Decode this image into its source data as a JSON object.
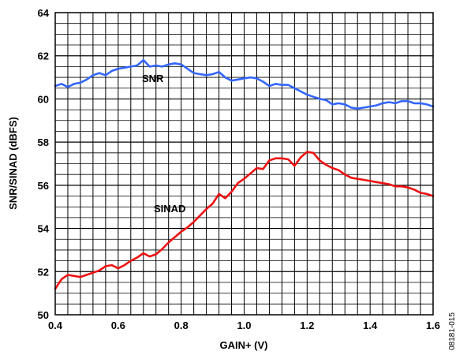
{
  "chart_data": {
    "type": "line",
    "xlabel": "GAIN+ (V)",
    "ylabel": "SNR/SINAD (dBFS)",
    "xlim": [
      0.4,
      1.6
    ],
    "ylim": [
      50,
      64
    ],
    "x_ticks": [
      0.4,
      0.6,
      0.8,
      1.0,
      1.2,
      1.4,
      1.6
    ],
    "x_tick_labels": [
      "0.4",
      "0.6",
      "0.8",
      "1.0",
      "1.2",
      "1.4",
      "1.6"
    ],
    "y_ticks": [
      50,
      52,
      54,
      56,
      58,
      60,
      62,
      64
    ],
    "y_tick_labels": [
      "50",
      "52",
      "54",
      "56",
      "58",
      "60",
      "62",
      "64"
    ],
    "grid": true,
    "figure_id": "08181-015",
    "series": [
      {
        "name": "SNR",
        "color": "#3366ff",
        "x": [
          0.4,
          0.42,
          0.44,
          0.46,
          0.48,
          0.5,
          0.52,
          0.54,
          0.56,
          0.58,
          0.6,
          0.62,
          0.64,
          0.66,
          0.68,
          0.7,
          0.72,
          0.74,
          0.76,
          0.78,
          0.8,
          0.82,
          0.84,
          0.86,
          0.88,
          0.9,
          0.92,
          0.94,
          0.96,
          0.98,
          1.0,
          1.02,
          1.04,
          1.06,
          1.08,
          1.1,
          1.12,
          1.14,
          1.16,
          1.18,
          1.2,
          1.22,
          1.24,
          1.26,
          1.28,
          1.3,
          1.32,
          1.34,
          1.36,
          1.38,
          1.4,
          1.42,
          1.44,
          1.46,
          1.48,
          1.5,
          1.52,
          1.54,
          1.56,
          1.58,
          1.6
        ],
        "values": [
          60.6,
          60.7,
          60.55,
          60.7,
          60.75,
          60.9,
          61.1,
          61.2,
          61.1,
          61.3,
          61.4,
          61.45,
          61.5,
          61.55,
          61.8,
          61.5,
          61.55,
          61.5,
          61.6,
          61.65,
          61.6,
          61.4,
          61.2,
          61.15,
          61.1,
          61.15,
          61.25,
          61.0,
          60.85,
          60.9,
          60.95,
          61.0,
          60.95,
          60.8,
          60.6,
          60.7,
          60.65,
          60.65,
          60.5,
          60.35,
          60.2,
          60.1,
          60.0,
          59.95,
          59.75,
          59.8,
          59.75,
          59.6,
          59.55,
          59.6,
          59.65,
          59.7,
          59.8,
          59.85,
          59.8,
          59.9,
          59.9,
          59.8,
          59.8,
          59.75,
          59.65
        ]
      },
      {
        "name": "SINAD",
        "color": "#ee1111",
        "x": [
          0.4,
          0.42,
          0.44,
          0.46,
          0.48,
          0.5,
          0.52,
          0.54,
          0.56,
          0.58,
          0.6,
          0.62,
          0.64,
          0.66,
          0.68,
          0.7,
          0.72,
          0.74,
          0.76,
          0.78,
          0.8,
          0.82,
          0.84,
          0.86,
          0.88,
          0.9,
          0.92,
          0.94,
          0.96,
          0.98,
          1.0,
          1.02,
          1.04,
          1.06,
          1.08,
          1.1,
          1.12,
          1.14,
          1.16,
          1.18,
          1.2,
          1.22,
          1.24,
          1.26,
          1.28,
          1.3,
          1.32,
          1.34,
          1.36,
          1.38,
          1.4,
          1.42,
          1.44,
          1.46,
          1.48,
          1.5,
          1.52,
          1.54,
          1.56,
          1.58,
          1.6
        ],
        "values": [
          51.2,
          51.65,
          51.85,
          51.8,
          51.75,
          51.85,
          51.95,
          52.05,
          52.25,
          52.3,
          52.15,
          52.3,
          52.5,
          52.65,
          52.85,
          52.7,
          52.8,
          53.05,
          53.35,
          53.6,
          53.85,
          54.05,
          54.3,
          54.6,
          54.9,
          55.15,
          55.6,
          55.4,
          55.7,
          56.1,
          56.3,
          56.55,
          56.8,
          56.75,
          57.15,
          57.25,
          57.25,
          57.2,
          56.9,
          57.3,
          57.55,
          57.5,
          57.15,
          56.95,
          56.8,
          56.7,
          56.5,
          56.35,
          56.3,
          56.25,
          56.2,
          56.15,
          56.1,
          56.05,
          55.95,
          55.95,
          55.9,
          55.8,
          55.65,
          55.6,
          55.5
        ]
      }
    ]
  }
}
